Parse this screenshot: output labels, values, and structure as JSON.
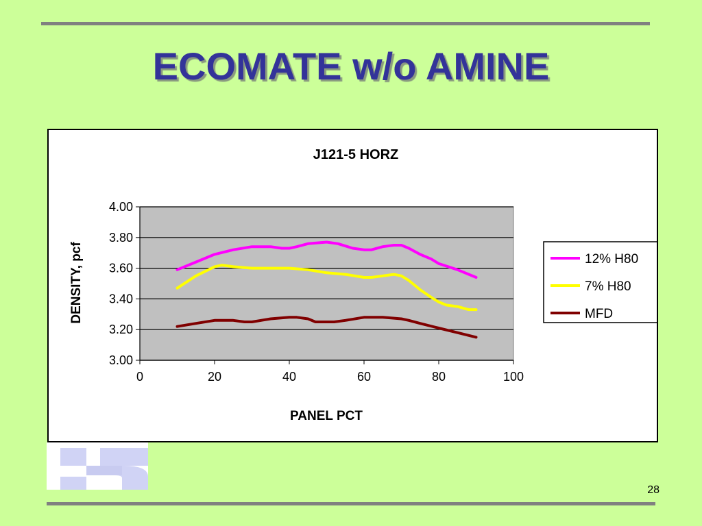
{
  "slide": {
    "title": "ECOMATE w/o AMINE",
    "page_number": "28",
    "colors": {
      "background": "#ccff99",
      "title": "#333399",
      "rules": "#808080"
    }
  },
  "chart_data": {
    "type": "line",
    "title": "J121-5 HORZ",
    "xlabel": "PANEL PCT",
    "ylabel": "DENSITY, pcf",
    "xlim": [
      0,
      100
    ],
    "ylim": [
      3.0,
      4.0
    ],
    "xticks": [
      0,
      20,
      40,
      60,
      80,
      100
    ],
    "yticks": [
      3.0,
      3.2,
      3.4,
      3.6,
      3.8,
      4.0
    ],
    "ytick_labels": [
      "3.00",
      "3.20",
      "3.40",
      "3.60",
      "3.80",
      "4.00"
    ],
    "xtick_labels": [
      "0",
      "20",
      "40",
      "60",
      "80",
      "100"
    ],
    "grid": "horizontal",
    "plot_background": "#c0c0c0",
    "legend_position": "right",
    "series": [
      {
        "name": "12% H80",
        "color": "#ff00ff",
        "points": [
          [
            10,
            3.59
          ],
          [
            15,
            3.64
          ],
          [
            20,
            3.69
          ],
          [
            25,
            3.72
          ],
          [
            30,
            3.74
          ],
          [
            35,
            3.74
          ],
          [
            38,
            3.73
          ],
          [
            40,
            3.73
          ],
          [
            42,
            3.74
          ],
          [
            45,
            3.76
          ],
          [
            50,
            3.77
          ],
          [
            53,
            3.76
          ],
          [
            57,
            3.73
          ],
          [
            60,
            3.72
          ],
          [
            62,
            3.72
          ],
          [
            65,
            3.74
          ],
          [
            68,
            3.75
          ],
          [
            70,
            3.75
          ],
          [
            72,
            3.73
          ],
          [
            75,
            3.69
          ],
          [
            78,
            3.66
          ],
          [
            80,
            3.63
          ],
          [
            85,
            3.59
          ],
          [
            90,
            3.54
          ]
        ]
      },
      {
        "name": "7% H80",
        "color": "#ffff00",
        "points": [
          [
            10,
            3.47
          ],
          [
            15,
            3.55
          ],
          [
            20,
            3.61
          ],
          [
            22,
            3.62
          ],
          [
            25,
            3.61
          ],
          [
            30,
            3.6
          ],
          [
            35,
            3.6
          ],
          [
            40,
            3.6
          ],
          [
            45,
            3.59
          ],
          [
            50,
            3.57
          ],
          [
            55,
            3.56
          ],
          [
            60,
            3.54
          ],
          [
            62,
            3.54
          ],
          [
            65,
            3.55
          ],
          [
            68,
            3.56
          ],
          [
            70,
            3.55
          ],
          [
            72,
            3.52
          ],
          [
            75,
            3.46
          ],
          [
            78,
            3.41
          ],
          [
            80,
            3.38
          ],
          [
            82,
            3.36
          ],
          [
            85,
            3.35
          ],
          [
            88,
            3.33
          ],
          [
            90,
            3.33
          ]
        ]
      },
      {
        "name": "MFD",
        "color": "#800000",
        "points": [
          [
            10,
            3.22
          ],
          [
            15,
            3.24
          ],
          [
            20,
            3.26
          ],
          [
            25,
            3.26
          ],
          [
            28,
            3.25
          ],
          [
            30,
            3.25
          ],
          [
            35,
            3.27
          ],
          [
            40,
            3.28
          ],
          [
            42,
            3.28
          ],
          [
            45,
            3.27
          ],
          [
            47,
            3.25
          ],
          [
            50,
            3.25
          ],
          [
            52,
            3.25
          ],
          [
            55,
            3.26
          ],
          [
            60,
            3.28
          ],
          [
            65,
            3.28
          ],
          [
            70,
            3.27
          ],
          [
            72,
            3.26
          ],
          [
            75,
            3.24
          ],
          [
            80,
            3.21
          ],
          [
            85,
            3.18
          ],
          [
            90,
            3.15
          ]
        ]
      }
    ]
  }
}
